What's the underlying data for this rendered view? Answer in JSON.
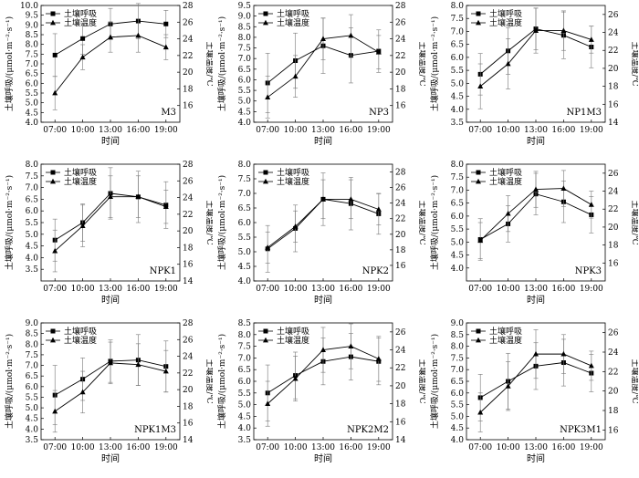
{
  "chart_data": [
    {
      "type": "line",
      "panel_label": "M3",
      "categories": [
        "07:00",
        "10:00",
        "13:00",
        "16:00",
        "19:00"
      ],
      "xlabel": "时间",
      "ylabel": "土壤呼吸/(μmol·m⁻²·s⁻¹)",
      "y2label": "土壤温度/℃",
      "ylim": [
        4.0,
        10.0
      ],
      "yticks": [
        "4.0",
        "4.5",
        "5.0",
        "5.5",
        "6.0",
        "6.5",
        "7.0",
        "7.5",
        "8.0",
        "8.5",
        "9.0",
        "9.5",
        "10.0"
      ],
      "y2lim": [
        14,
        28
      ],
      "y2ticks": [
        "16",
        "18",
        "20",
        "22",
        "24",
        "26",
        "28"
      ],
      "series": [
        {
          "name": "土壤呼吸",
          "axis": "left",
          "marker": "square",
          "values": [
            7.45,
            8.3,
            9.05,
            9.2,
            9.05
          ],
          "errors": [
            1.1,
            0.8,
            0.8,
            0.9,
            0.7
          ]
        },
        {
          "name": "土壤温度",
          "axis": "right",
          "marker": "triangle",
          "values": [
            17.5,
            21.8,
            24.2,
            24.4,
            23.0
          ],
          "errors": [
            2.0,
            1.5,
            1.8,
            2.0,
            1.5
          ]
        }
      ]
    },
    {
      "type": "line",
      "panel_label": "NP3",
      "categories": [
        "07:00",
        "10:00",
        "13:00",
        "16:00",
        "19:00"
      ],
      "xlabel": "时间",
      "ylabel": "土壤呼吸/(μmol·m⁻²·s⁻¹)",
      "y2label": "土壤温度/℃",
      "ylim": [
        4.0,
        9.5
      ],
      "yticks": [
        "4.0",
        "4.5",
        "5.0",
        "5.5",
        "6.0",
        "6.5",
        "7.0",
        "7.5",
        "8.0",
        "8.5",
        "9.0",
        "9.5"
      ],
      "y2lim": [
        14,
        28
      ],
      "y2ticks": [
        "16",
        "18",
        "20",
        "22",
        "24",
        "26",
        "28"
      ],
      "series": [
        {
          "name": "土壤呼吸",
          "axis": "left",
          "marker": "square",
          "values": [
            5.85,
            6.9,
            7.6,
            7.15,
            7.35
          ],
          "errors": [
            1.4,
            1.3,
            1.3,
            1.3,
            1.0
          ]
        },
        {
          "name": "土壤温度",
          "axis": "right",
          "marker": "triangle",
          "values": [
            17.0,
            19.5,
            24.0,
            24.4,
            22.4
          ],
          "errors": [
            2.5,
            2.5,
            2.5,
            2.5,
            2.0
          ]
        }
      ]
    },
    {
      "type": "line",
      "panel_label": "NP1M3",
      "categories": [
        "07:00",
        "10:00",
        "13:00",
        "16:00",
        "19:00"
      ],
      "xlabel": "时间",
      "ylabel": "土壤呼吸/(μmol·m⁻²·s⁻¹)",
      "y2label": "土壤温度/℃",
      "ylim": [
        3.5,
        8.0
      ],
      "yticks": [
        "3.5",
        "4.0",
        "4.5",
        "5.0",
        "5.5",
        "6.0",
        "6.5",
        "7.0",
        "7.5",
        "8.0"
      ],
      "y2lim": [
        14,
        27
      ],
      "y2ticks": [
        "14",
        "16",
        "18",
        "20",
        "22",
        "24",
        "26"
      ],
      "series": [
        {
          "name": "土壤呼吸",
          "axis": "left",
          "marker": "square",
          "values": [
            5.35,
            6.25,
            7.1,
            6.85,
            6.4
          ],
          "errors": [
            0.8,
            0.9,
            0.8,
            0.9,
            0.8
          ]
        },
        {
          "name": "土壤温度",
          "axis": "right",
          "marker": "triangle",
          "values": [
            18.0,
            20.5,
            24.2,
            24.2,
            23.2
          ],
          "errors": [
            2.5,
            2.8,
            2.5,
            2.2,
            1.5
          ]
        }
      ]
    },
    {
      "type": "line",
      "panel_label": "NPK1",
      "categories": [
        "07:00",
        "10:00",
        "13:00",
        "16:00",
        "19:00"
      ],
      "xlabel": "时间",
      "ylabel": "土壤呼吸/(μmol·m⁻²·s⁻¹)",
      "y2label": "土壤温度/℃",
      "ylim": [
        3.0,
        8.0
      ],
      "yticks": [
        "3.5",
        "4.0",
        "4.5",
        "5.0",
        "5.5",
        "6.0",
        "6.5",
        "7.0",
        "7.5",
        "8.0"
      ],
      "y2lim": [
        14,
        28
      ],
      "y2ticks": [
        "14",
        "16",
        "18",
        "20",
        "22",
        "24",
        "26",
        "28"
      ],
      "series": [
        {
          "name": "土壤呼吸",
          "axis": "left",
          "marker": "square",
          "values": [
            4.75,
            5.5,
            6.75,
            6.6,
            6.25
          ],
          "errors": [
            0.9,
            0.8,
            1.1,
            1.1,
            1.0
          ]
        },
        {
          "name": "土壤温度",
          "axis": "right",
          "marker": "triangle",
          "values": [
            17.6,
            20.6,
            24.1,
            24.1,
            22.9
          ],
          "errors": [
            2.5,
            2.5,
            2.5,
            2.5,
            2.0
          ]
        }
      ]
    },
    {
      "type": "line",
      "panel_label": "NPK2",
      "categories": [
        "07:00",
        "10:00",
        "13:00",
        "16:00",
        "19:00"
      ],
      "xlabel": "时间",
      "ylabel": "土壤呼吸/(μmol·m⁻²·s⁻¹)",
      "y2label": "土壤温度/℃",
      "ylim": [
        4.0,
        8.0
      ],
      "yticks": [
        "4.0",
        "4.5",
        "5.0",
        "5.5",
        "6.0",
        "6.5",
        "7.0",
        "7.5",
        "8.0"
      ],
      "y2lim": [
        14,
        29
      ],
      "y2ticks": [
        "16",
        "18",
        "20",
        "22",
        "24",
        "26",
        "28"
      ],
      "series": [
        {
          "name": "土壤呼吸",
          "axis": "left",
          "marker": "square",
          "values": [
            5.1,
            5.8,
            6.8,
            6.65,
            6.3
          ],
          "errors": [
            0.8,
            0.8,
            0.9,
            0.9,
            0.7
          ]
        },
        {
          "name": "土壤温度",
          "axis": "right",
          "marker": "triangle",
          "values": [
            18.3,
            21.0,
            24.5,
            24.5,
            23.2
          ],
          "errors": [
            2.0,
            2.0,
            2.5,
            2.5,
            2.0
          ]
        }
      ]
    },
    {
      "type": "line",
      "panel_label": "NPK3",
      "categories": [
        "07:00",
        "10:00",
        "13:00",
        "16:00",
        "19:00"
      ],
      "xlabel": "时间",
      "ylabel": "土壤呼吸/(μmol·m⁻²·s⁻¹)",
      "y2label": "土壤温度/℃",
      "ylim": [
        3.5,
        8.0
      ],
      "yticks": [
        "4.0",
        "4.5",
        "5.0",
        "5.5",
        "6.0",
        "6.5",
        "7.0",
        "7.5",
        "8.0"
      ],
      "y2lim": [
        14,
        27
      ],
      "y2ticks": [
        "16",
        "18",
        "20",
        "22",
        "24",
        "26"
      ],
      "series": [
        {
          "name": "土壤呼吸",
          "axis": "left",
          "marker": "square",
          "values": [
            5.1,
            5.7,
            6.85,
            6.55,
            6.05
          ],
          "errors": [
            0.8,
            0.7,
            0.8,
            0.8,
            0.7
          ]
        },
        {
          "name": "土壤温度",
          "axis": "right",
          "marker": "triangle",
          "values": [
            18.5,
            21.5,
            24.2,
            24.3,
            22.5
          ],
          "errors": [
            2.0,
            2.0,
            2.0,
            2.0,
            1.5
          ]
        }
      ]
    },
    {
      "type": "line",
      "panel_label": "NPK1M3",
      "categories": [
        "07:00",
        "10:00",
        "13:00",
        "16:00",
        "19:00"
      ],
      "xlabel": "时间",
      "ylabel": "土壤呼吸/(μmol·m⁻²·s⁻¹)",
      "y2label": "土壤温度/℃",
      "ylim": [
        3.5,
        9.0
      ],
      "yticks": [
        "3.5",
        "4.0",
        "4.5",
        "5.0",
        "5.5",
        "6.0",
        "6.5",
        "7.0",
        "7.5",
        "8.0",
        "8.5",
        "9.0"
      ],
      "y2lim": [
        14,
        28
      ],
      "y2ticks": [
        "14",
        "16",
        "18",
        "20",
        "22",
        "24",
        "26",
        "28"
      ],
      "series": [
        {
          "name": "土壤呼吸",
          "axis": "left",
          "marker": "square",
          "values": [
            5.6,
            6.35,
            7.2,
            7.25,
            6.95
          ],
          "errors": [
            1.4,
            1.0,
            1.0,
            1.2,
            1.2
          ]
        },
        {
          "name": "土壤温度",
          "axis": "right",
          "marker": "triangle",
          "values": [
            17.4,
            19.7,
            23.2,
            23.0,
            22.2
          ],
          "errors": [
            2.5,
            2.5,
            2.5,
            2.5,
            2.5
          ]
        }
      ]
    },
    {
      "type": "line",
      "panel_label": "NPK2M2",
      "categories": [
        "07:00",
        "10:00",
        "13:00",
        "16:00",
        "19:00"
      ],
      "xlabel": "时间",
      "ylabel": "土壤呼吸/(μmol·m⁻²·s⁻¹)",
      "y2label": "土壤温度/℃",
      "ylim": [
        3.5,
        8.5
      ],
      "yticks": [
        "3.5",
        "4.0",
        "4.5",
        "5.0",
        "5.5",
        "6.0",
        "6.5",
        "7.0",
        "7.5",
        "8.0",
        "8.5"
      ],
      "y2lim": [
        14,
        27
      ],
      "y2ticks": [
        "14",
        "16",
        "18",
        "20",
        "22",
        "24",
        "26"
      ],
      "series": [
        {
          "name": "土壤呼吸",
          "axis": "left",
          "marker": "square",
          "values": [
            5.5,
            6.25,
            6.85,
            7.05,
            6.85
          ],
          "errors": [
            1.2,
            1.0,
            1.0,
            1.0,
            1.0
          ]
        },
        {
          "name": "土壤温度",
          "axis": "right",
          "marker": "triangle",
          "values": [
            18.0,
            20.8,
            24.0,
            24.4,
            23.0
          ],
          "errors": [
            2.5,
            2.5,
            2.5,
            2.5,
            2.5
          ]
        }
      ]
    },
    {
      "type": "line",
      "panel_label": "NPK3M1",
      "categories": [
        "07:00",
        "10:00",
        "13:00",
        "16:00",
        "19:00"
      ],
      "xlabel": "时间",
      "ylabel": "土壤呼吸/(μmol·m⁻²·s⁻¹)",
      "y2label": "土壤温度/℃",
      "ylim": [
        4.0,
        9.0
      ],
      "yticks": [
        "4.0",
        "4.5",
        "5.0",
        "5.5",
        "6.0",
        "6.5",
        "7.0",
        "7.5",
        "8.0",
        "8.5",
        "9.0"
      ],
      "y2lim": [
        15,
        27
      ],
      "y2ticks": [
        "16",
        "18",
        "20",
        "22",
        "24",
        "26"
      ],
      "series": [
        {
          "name": "土壤呼吸",
          "axis": "left",
          "marker": "square",
          "values": [
            5.8,
            6.5,
            7.15,
            7.3,
            6.85
          ],
          "errors": [
            1.0,
            1.2,
            1.0,
            1.0,
            0.8
          ]
        },
        {
          "name": "土壤温度",
          "axis": "right",
          "marker": "triangle",
          "values": [
            17.8,
            20.5,
            23.8,
            23.8,
            22.6
          ],
          "errors": [
            2.0,
            2.5,
            2.5,
            2.0,
            1.5
          ]
        }
      ]
    }
  ]
}
